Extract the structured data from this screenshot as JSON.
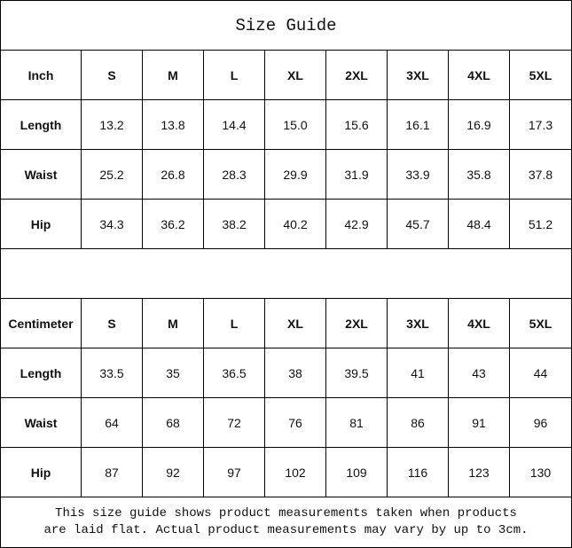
{
  "title": "Size Guide",
  "sizes": [
    "S",
    "M",
    "L",
    "XL",
    "2XL",
    "3XL",
    "4XL",
    "5XL"
  ],
  "inch": {
    "unit_label": "Inch",
    "rows": [
      {
        "label": "Length",
        "values": [
          "13.2",
          "13.8",
          "14.4",
          "15.0",
          "15.6",
          "16.1",
          "16.9",
          "17.3"
        ]
      },
      {
        "label": "Waist",
        "values": [
          "25.2",
          "26.8",
          "28.3",
          "29.9",
          "31.9",
          "33.9",
          "35.8",
          "37.8"
        ]
      },
      {
        "label": "Hip",
        "values": [
          "34.3",
          "36.2",
          "38.2",
          "40.2",
          "42.9",
          "45.7",
          "48.4",
          "51.2"
        ]
      }
    ]
  },
  "centimeter": {
    "unit_label": "Centimeter",
    "rows": [
      {
        "label": "Length",
        "values": [
          "33.5",
          "35",
          "36.5",
          "38",
          "39.5",
          "41",
          "43",
          "44"
        ]
      },
      {
        "label": "Waist",
        "values": [
          "64",
          "68",
          "72",
          "76",
          "81",
          "86",
          "91",
          "96"
        ]
      },
      {
        "label": "Hip",
        "values": [
          "87",
          "92",
          "97",
          "102",
          "109",
          "116",
          "123",
          "130"
        ]
      }
    ]
  },
  "note": {
    "line1": "This size guide shows product measurements taken when products",
    "line2": "are laid flat. Actual product measurements may vary by up to 3cm."
  }
}
